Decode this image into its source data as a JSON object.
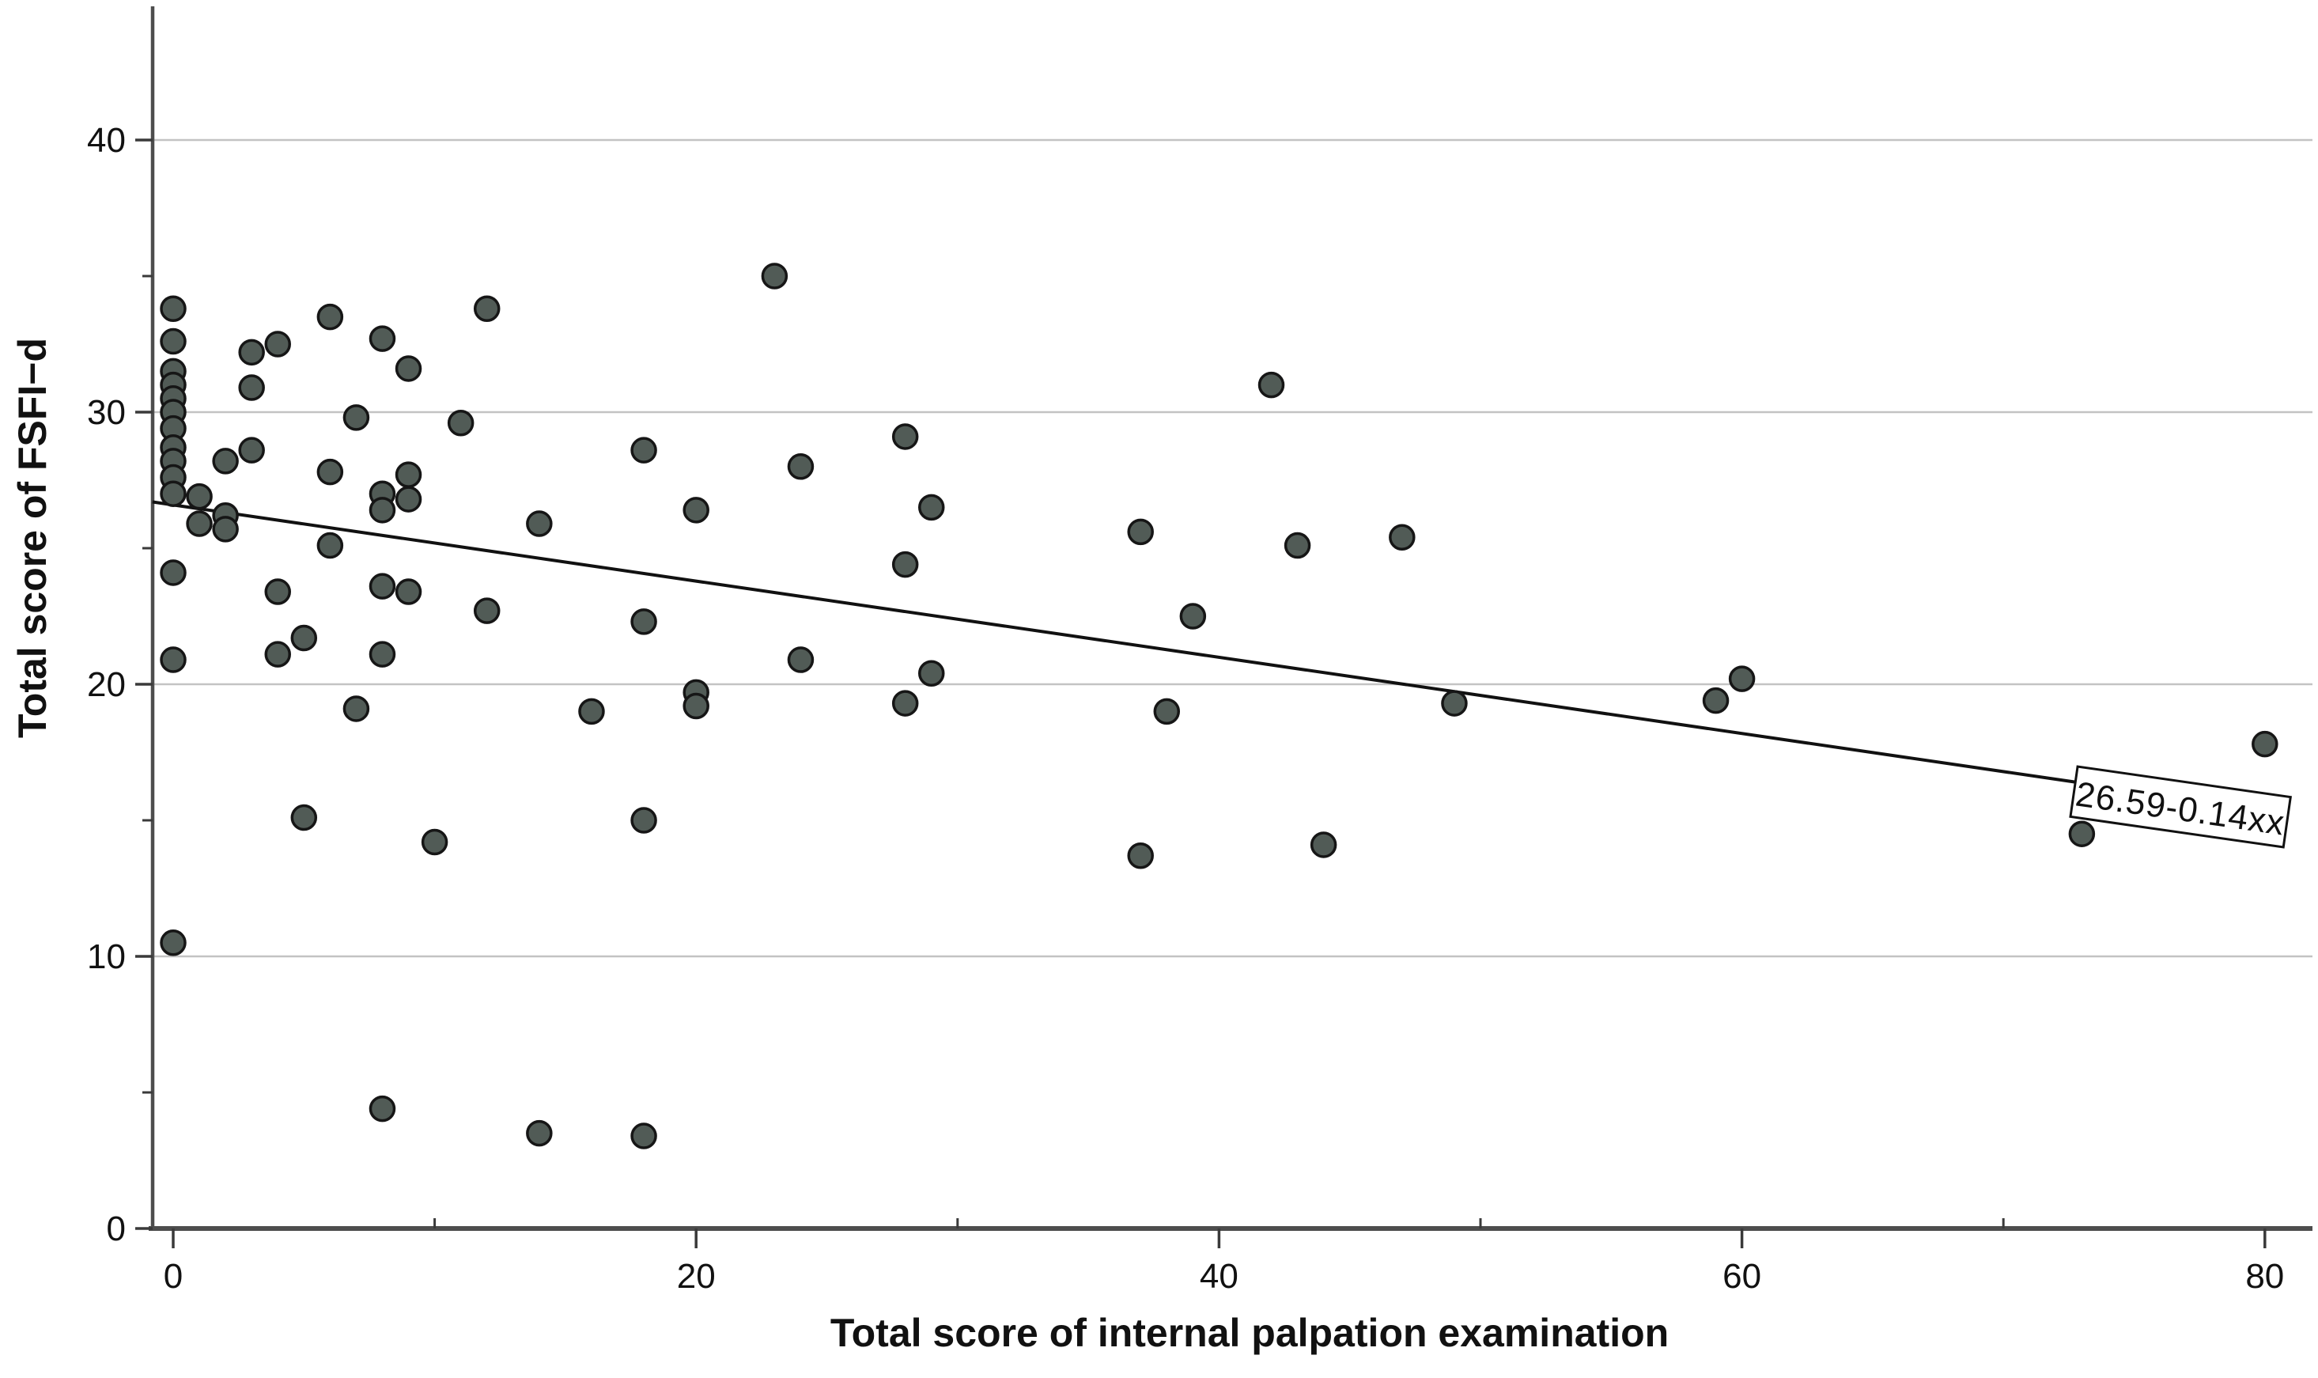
{
  "chart_data": {
    "type": "scatter",
    "title": "",
    "xlabel": "Total score of internal palpation examination",
    "ylabel": "Total score of FSFI−d",
    "xlim": [
      -0.8,
      82
    ],
    "ylim": [
      0,
      44.8
    ],
    "grid": "horizontal-only",
    "legend_position": "none",
    "x_ticks_major": [
      0,
      20,
      40,
      60,
      80
    ],
    "x_ticks_minor": [
      10,
      30,
      50,
      70
    ],
    "y_ticks_major": [
      0,
      10,
      20,
      30,
      40
    ],
    "y_ticks_minor": [
      5,
      15,
      25,
      35
    ],
    "y_gridlines": [
      10,
      20,
      30,
      40
    ],
    "points": [
      [
        0,
        33.8
      ],
      [
        0,
        32.6
      ],
      [
        0,
        31.5
      ],
      [
        0,
        31.0
      ],
      [
        0,
        30.5
      ],
      [
        0,
        30.0
      ],
      [
        0,
        29.4
      ],
      [
        0,
        28.7
      ],
      [
        0,
        28.2
      ],
      [
        0,
        27.6
      ],
      [
        0,
        27.0
      ],
      [
        0,
        24.1
      ],
      [
        0,
        20.9
      ],
      [
        0,
        10.5
      ],
      [
        1,
        26.9
      ],
      [
        1,
        25.9
      ],
      [
        2,
        28.2
      ],
      [
        2,
        26.2
      ],
      [
        2,
        25.7
      ],
      [
        3,
        32.2
      ],
      [
        3,
        30.9
      ],
      [
        3,
        28.6
      ],
      [
        4,
        32.5
      ],
      [
        4,
        23.4
      ],
      [
        4,
        21.1
      ],
      [
        5,
        21.7
      ],
      [
        5,
        15.1
      ],
      [
        6,
        33.5
      ],
      [
        6,
        27.8
      ],
      [
        6,
        25.1
      ],
      [
        7,
        29.8
      ],
      [
        7,
        19.1
      ],
      [
        8,
        32.7
      ],
      [
        8,
        27.0
      ],
      [
        8,
        26.4
      ],
      [
        8,
        23.6
      ],
      [
        8,
        21.1
      ],
      [
        8,
        4.4
      ],
      [
        9,
        31.6
      ],
      [
        9,
        27.7
      ],
      [
        9,
        26.8
      ],
      [
        9,
        23.4
      ],
      [
        10,
        14.2
      ],
      [
        11,
        29.6
      ],
      [
        12,
        33.8
      ],
      [
        12,
        22.7
      ],
      [
        14,
        25.9
      ],
      [
        14,
        3.5
      ],
      [
        16,
        19.0
      ],
      [
        18,
        28.6
      ],
      [
        18,
        22.3
      ],
      [
        18,
        15.0
      ],
      [
        18,
        3.4
      ],
      [
        20,
        26.4
      ],
      [
        20,
        19.7
      ],
      [
        20,
        19.2
      ],
      [
        23,
        35.0
      ],
      [
        24,
        28.0
      ],
      [
        24,
        20.9
      ],
      [
        28,
        29.1
      ],
      [
        28,
        24.4
      ],
      [
        28,
        19.3
      ],
      [
        29,
        26.5
      ],
      [
        29,
        20.4
      ],
      [
        37,
        25.6
      ],
      [
        37,
        13.7
      ],
      [
        38,
        19.0
      ],
      [
        39,
        22.5
      ],
      [
        42,
        31.0
      ],
      [
        43,
        25.1
      ],
      [
        44,
        14.1
      ],
      [
        47,
        25.4
      ],
      [
        49,
        19.3
      ],
      [
        59,
        19.4
      ],
      [
        60,
        20.2
      ],
      [
        73,
        14.5
      ],
      [
        80,
        17.8
      ]
    ],
    "regression": {
      "equation_label": "26.59-0.14xx",
      "intercept": 26.59,
      "slope": -0.14,
      "x_start": -0.79,
      "x_end": 80.9
    },
    "colors": {
      "background": "#ffffff",
      "point_fill": "#515b56",
      "point_stroke": "#161616",
      "gridline": "#c3c3c3",
      "axis": "#4d4d4d",
      "tick": "#3a3a3a",
      "regression_line": "#111111",
      "equation_box_fill": "#ffffff",
      "equation_box_border": "#111111",
      "text": "#111111"
    }
  }
}
